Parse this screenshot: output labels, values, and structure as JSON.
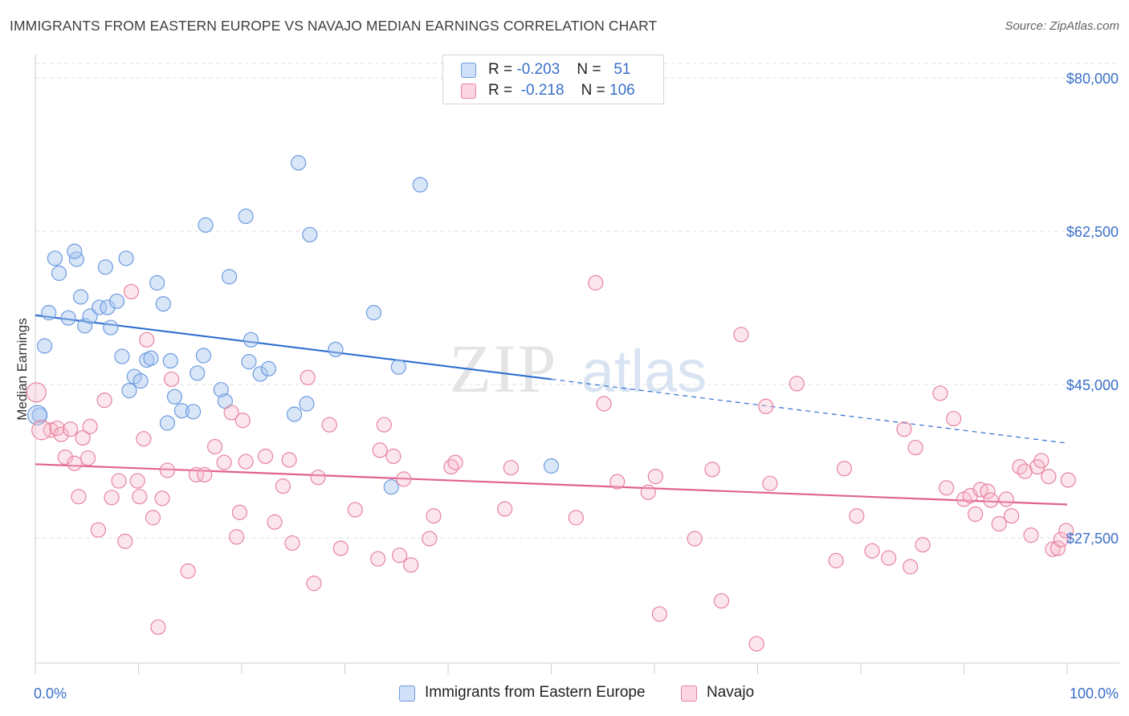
{
  "title": "IMMIGRANTS FROM EASTERN EUROPE VS NAVAJO MEDIAN EARNINGS CORRELATION CHART",
  "source": "Source: ZipAtlas.com",
  "watermark": {
    "zip": "ZIP",
    "atlas": "atlas"
  },
  "legend": {
    "rows": [
      {
        "r_label": "R = ",
        "r_value": "-0.203",
        "n_label": "N = ",
        "n_value": "51",
        "color": "#a8c8f0"
      },
      {
        "r_label": "R = ",
        "r_value": "-0.218",
        "n_label": "N = ",
        "n_value": "106",
        "color": "#f5b8cc"
      }
    ]
  },
  "bottom_legend": [
    {
      "label": "Immigrants from Eastern Europe",
      "color": "#a8c8f0"
    },
    {
      "label": "Navajo",
      "color": "#f5b8cc"
    }
  ],
  "chart_data": {
    "type": "scatter",
    "ylabel": "Median Earnings",
    "x_tick_labels": [
      "0.0%",
      "100.0%"
    ],
    "y_tick_labels": [
      "$80,000",
      "$62,500",
      "$45,000",
      "$27,500"
    ],
    "y_ticks": [
      80000,
      62500,
      45000,
      27500
    ],
    "xlim": [
      0,
      100
    ],
    "ylim": [
      10000,
      86000
    ],
    "grid": true,
    "colors": {
      "blue": "#4a86d8",
      "blue_fill": "#a8c8f0",
      "pink": "#e0628f",
      "pink_fill": "#f5b8cc",
      "axis_label": "#3a6fc9"
    },
    "series": [
      {
        "name": "Immigrants from Eastern Europe",
        "color": "#4a86d8",
        "fill": "#a8c8f0",
        "trend": {
          "x0": 0,
          "y0": 52900,
          "x1": 50,
          "y1": 45600,
          "dashed_to_x": 100,
          "dashed_to_y": 38300
        },
        "points": [
          [
            1.3,
            53.2
          ],
          [
            1.9,
            59.4
          ],
          [
            2.3,
            57.7
          ],
          [
            3.2,
            52.6
          ],
          [
            4.0,
            59.3
          ],
          [
            3.8,
            60.2
          ],
          [
            4.4,
            55.0
          ],
          [
            4.8,
            51.7
          ],
          [
            5.3,
            52.8
          ],
          [
            6.2,
            53.8
          ],
          [
            7.0,
            53.8
          ],
          [
            6.8,
            58.4
          ],
          [
            7.3,
            51.5
          ],
          [
            7.9,
            54.5
          ],
          [
            8.4,
            48.2
          ],
          [
            8.8,
            59.4
          ],
          [
            9.1,
            44.3
          ],
          [
            9.6,
            45.9
          ],
          [
            10.2,
            45.4
          ],
          [
            10.8,
            47.8
          ],
          [
            11.2,
            48.0
          ],
          [
            11.8,
            56.6
          ],
          [
            12.4,
            54.2
          ],
          [
            12.8,
            40.6
          ],
          [
            13.1,
            47.7
          ],
          [
            13.5,
            43.6
          ],
          [
            14.2,
            42.0
          ],
          [
            15.3,
            41.9
          ],
          [
            15.7,
            46.3
          ],
          [
            16.3,
            48.3
          ],
          [
            16.5,
            63.2
          ],
          [
            18.0,
            44.4
          ],
          [
            18.4,
            43.1
          ],
          [
            18.8,
            57.3
          ],
          [
            20.4,
            64.2
          ],
          [
            20.7,
            47.6
          ],
          [
            20.9,
            50.1
          ],
          [
            21.8,
            46.2
          ],
          [
            22.6,
            46.8
          ],
          [
            25.1,
            41.6
          ],
          [
            25.5,
            70.3
          ],
          [
            26.3,
            42.8
          ],
          [
            26.6,
            62.1
          ],
          [
            29.1,
            49.0
          ],
          [
            32.8,
            53.2
          ],
          [
            34.5,
            33.3
          ],
          [
            35.2,
            47.0
          ],
          [
            37.3,
            67.8
          ],
          [
            50.0,
            35.7
          ],
          [
            0.9,
            49.4
          ],
          [
            0.4,
            41.5
          ]
        ]
      },
      {
        "name": "Navajo",
        "color": "#e0628f",
        "fill": "#f5b8cc",
        "trend": {
          "x0": 0,
          "y0": 35900,
          "x1": 100,
          "y1": 31300
        },
        "points": [
          [
            1.5,
            39.8
          ],
          [
            2.1,
            40.0
          ],
          [
            2.5,
            39.3
          ],
          [
            2.9,
            36.7
          ],
          [
            3.4,
            39.9
          ],
          [
            3.8,
            36.0
          ],
          [
            4.2,
            32.2
          ],
          [
            4.6,
            38.9
          ],
          [
            5.3,
            40.2
          ],
          [
            5.1,
            36.6
          ],
          [
            6.1,
            28.4
          ],
          [
            6.7,
            43.2
          ],
          [
            7.4,
            32.1
          ],
          [
            8.1,
            34.0
          ],
          [
            8.7,
            27.1
          ],
          [
            9.3,
            55.6
          ],
          [
            9.9,
            34.0
          ],
          [
            10.1,
            32.2
          ],
          [
            10.5,
            38.8
          ],
          [
            10.8,
            50.1
          ],
          [
            11.4,
            29.8
          ],
          [
            11.9,
            17.3
          ],
          [
            12.3,
            32.0
          ],
          [
            12.8,
            35.2
          ],
          [
            13.2,
            45.6
          ],
          [
            14.8,
            23.7
          ],
          [
            15.6,
            34.7
          ],
          [
            16.4,
            34.7
          ],
          [
            17.4,
            37.9
          ],
          [
            18.3,
            36.1
          ],
          [
            19.0,
            41.8
          ],
          [
            19.5,
            27.6
          ],
          [
            19.8,
            30.4
          ],
          [
            20.1,
            40.9
          ],
          [
            20.4,
            36.2
          ],
          [
            22.3,
            36.8
          ],
          [
            23.2,
            29.3
          ],
          [
            24.0,
            33.4
          ],
          [
            24.6,
            36.4
          ],
          [
            24.9,
            26.9
          ],
          [
            26.4,
            45.8
          ],
          [
            27.0,
            22.3
          ],
          [
            27.4,
            34.4
          ],
          [
            28.5,
            40.4
          ],
          [
            29.6,
            26.3
          ],
          [
            31.0,
            30.7
          ],
          [
            33.2,
            25.1
          ],
          [
            33.4,
            37.5
          ],
          [
            33.8,
            40.4
          ],
          [
            34.7,
            36.8
          ],
          [
            35.3,
            25.5
          ],
          [
            35.7,
            34.2
          ],
          [
            36.4,
            24.4
          ],
          [
            38.2,
            27.4
          ],
          [
            38.6,
            30.0
          ],
          [
            40.3,
            35.6
          ],
          [
            40.7,
            36.1
          ],
          [
            45.5,
            30.8
          ],
          [
            46.1,
            35.5
          ],
          [
            52.4,
            29.8
          ],
          [
            54.3,
            56.6
          ],
          [
            55.1,
            42.8
          ],
          [
            56.4,
            33.9
          ],
          [
            59.4,
            32.7
          ],
          [
            60.1,
            34.5
          ],
          [
            60.5,
            18.8
          ],
          [
            63.9,
            27.4
          ],
          [
            65.6,
            35.3
          ],
          [
            66.5,
            20.3
          ],
          [
            68.4,
            50.7
          ],
          [
            69.9,
            15.4
          ],
          [
            70.8,
            42.5
          ],
          [
            71.2,
            33.7
          ],
          [
            73.8,
            45.1
          ],
          [
            77.6,
            24.9
          ],
          [
            78.4,
            35.4
          ],
          [
            79.6,
            30.0
          ],
          [
            81.1,
            26.0
          ],
          [
            82.7,
            25.2
          ],
          [
            84.2,
            39.9
          ],
          [
            84.8,
            24.2
          ],
          [
            85.3,
            37.8
          ],
          [
            86.0,
            26.7
          ],
          [
            87.7,
            44.0
          ],
          [
            88.3,
            33.2
          ],
          [
            89.0,
            41.1
          ],
          [
            90.0,
            31.9
          ],
          [
            90.6,
            32.3
          ],
          [
            91.1,
            30.2
          ],
          [
            91.6,
            33.0
          ],
          [
            92.3,
            32.8
          ],
          [
            92.6,
            31.8
          ],
          [
            93.4,
            29.1
          ],
          [
            94.1,
            31.9
          ],
          [
            94.6,
            30.0
          ],
          [
            95.4,
            35.6
          ],
          [
            95.9,
            35.1
          ],
          [
            96.5,
            27.8
          ],
          [
            97.1,
            35.6
          ],
          [
            97.5,
            36.3
          ],
          [
            98.2,
            34.5
          ],
          [
            98.6,
            26.2
          ],
          [
            99.1,
            26.3
          ],
          [
            99.4,
            27.3
          ],
          [
            99.9,
            28.3
          ],
          [
            100.1,
            34.1
          ]
        ]
      }
    ],
    "large_markers": [
      {
        "series": "Immigrants from Eastern Europe",
        "x": 0.2,
        "y": 41.5
      },
      {
        "series": "Navajo",
        "x": 0.1,
        "y": 44.1
      },
      {
        "series": "Navajo",
        "x": 0.6,
        "y": 39.8
      }
    ]
  }
}
